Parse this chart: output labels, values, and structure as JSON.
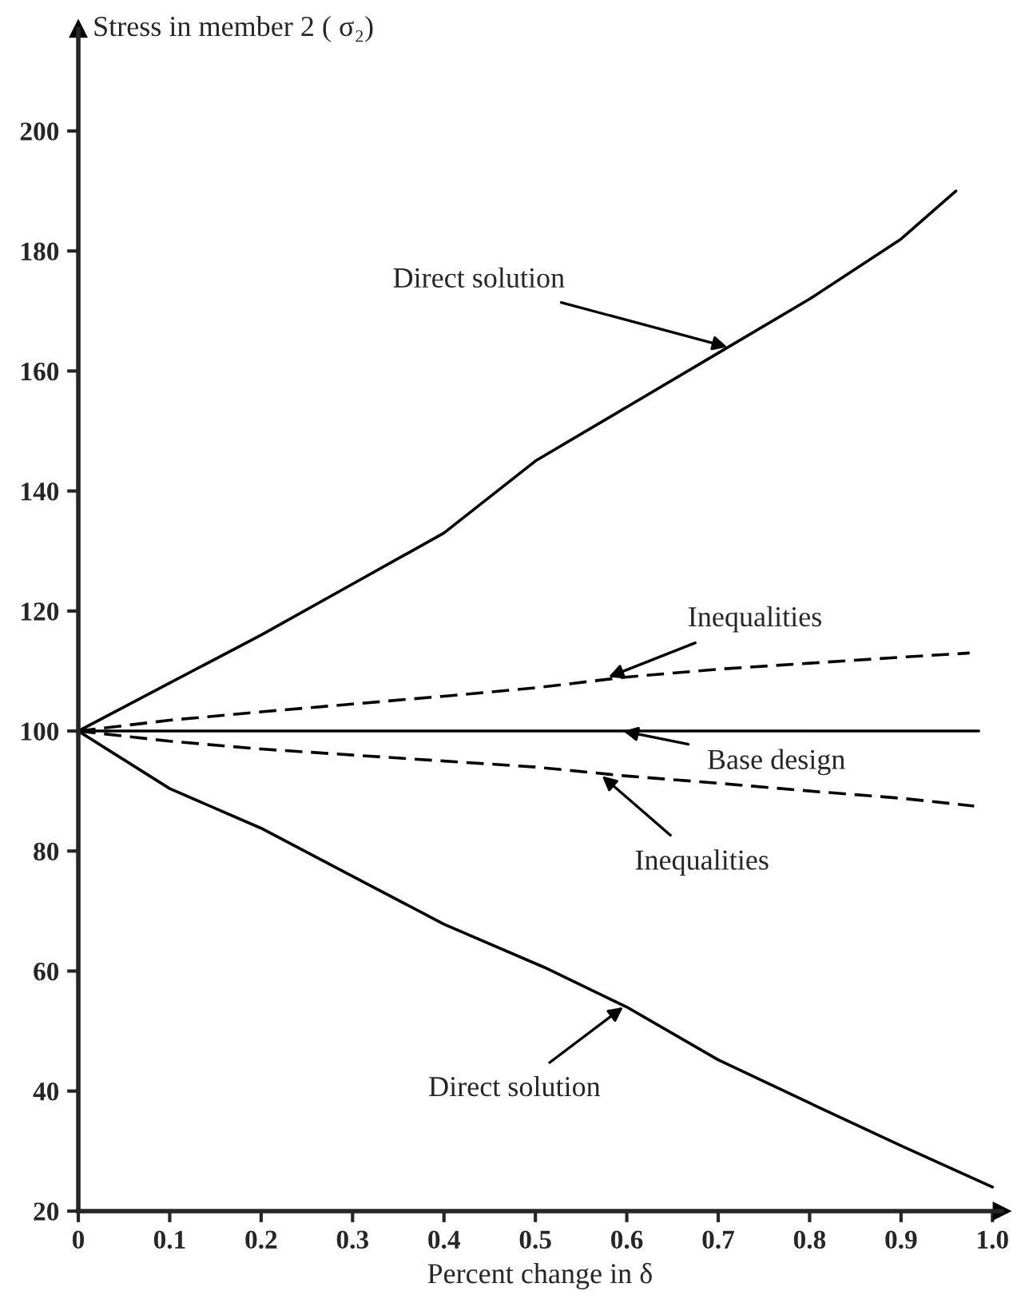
{
  "chart_data": {
    "type": "line",
    "xlabel": "Percent change in δ",
    "ylabel": "Stress in member 2 ( σ₂)",
    "xlim": [
      0,
      1.01
    ],
    "ylim": [
      20,
      217
    ],
    "xticks": [
      0,
      0.1,
      0.2,
      0.3,
      0.4,
      0.5,
      0.6,
      0.7,
      0.8,
      0.9,
      {
        "value": 1.0,
        "label": "1.0"
      }
    ],
    "yticks": [
      20,
      40,
      60,
      80,
      100,
      120,
      140,
      160,
      180,
      200
    ],
    "grid": false,
    "legend": false,
    "marker": "none",
    "series": [
      {
        "color": "#000000",
        "line_style": "solid",
        "x": [
          0,
          0.1,
          0.2,
          0.3,
          0.4,
          0.5,
          0.6,
          0.7,
          0.8,
          0.9,
          0.96
        ],
        "values": [
          100,
          108,
          116,
          124.5,
          133,
          145,
          154,
          163,
          172,
          182,
          190
        ]
      },
      {
        "color": "#000000",
        "line_style": "dashed",
        "x": [
          0,
          0.1,
          0.2,
          0.3,
          0.4,
          0.5,
          0.6,
          0.7,
          0.8,
          0.9,
          0.975
        ],
        "values": [
          100,
          101.8,
          103.2,
          104.5,
          105.8,
          107.2,
          109,
          110.3,
          111.3,
          112.3,
          113
        ]
      },
      {
        "color": "#000000",
        "line_style": "solid",
        "x": [
          0,
          0.985
        ],
        "values": [
          100,
          100
        ]
      },
      {
        "color": "#000000",
        "line_style": "dashed",
        "x": [
          0,
          0.1,
          0.2,
          0.3,
          0.4,
          0.5,
          0.6,
          0.7,
          0.8,
          0.9,
          0.98
        ],
        "values": [
          100,
          98.3,
          97,
          96,
          95,
          94,
          92.5,
          91.3,
          90,
          88.8,
          87.5
        ]
      },
      {
        "color": "#000000",
        "line_style": "solid",
        "x": [
          0,
          0.1,
          0.2,
          0.3,
          0.4,
          0.51,
          0.6,
          0.7,
          0.8,
          0.9,
          1.0
        ],
        "values": [
          100,
          90.4,
          83.8,
          75.8,
          67.8,
          60.6,
          54,
          45.2,
          38,
          30.9,
          24
        ]
      }
    ],
    "annotations": [
      {
        "text": "Direct solution",
        "x": 0.71,
        "y": 164
      },
      {
        "text": "Inequalities",
        "x": 0.58,
        "y": 109
      },
      {
        "text": "Base design",
        "x": 0.596,
        "y": 100
      },
      {
        "text": "Inequalities",
        "x": 0.573,
        "y": 92.5
      },
      {
        "text": "Direct solution",
        "x": 0.596,
        "y": 54
      }
    ]
  }
}
